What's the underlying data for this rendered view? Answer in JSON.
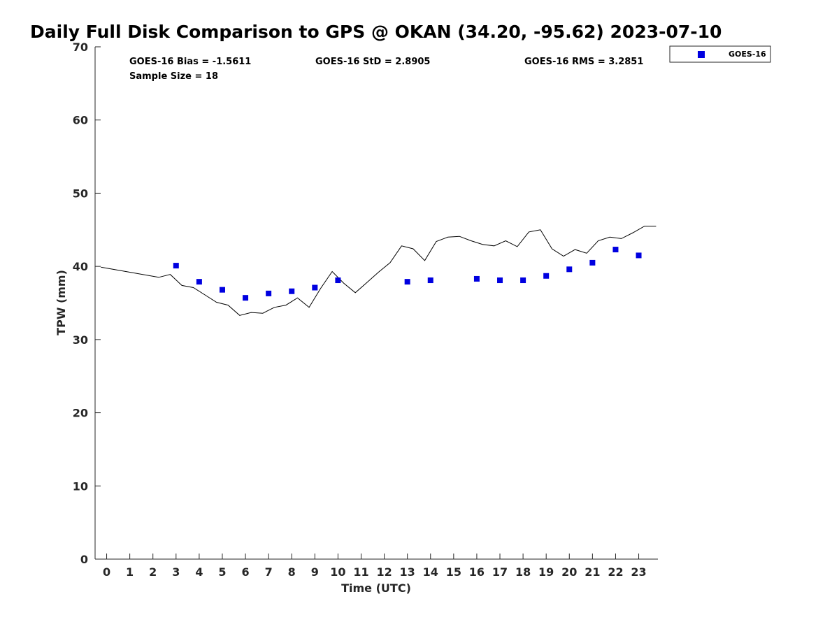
{
  "chart_data": {
    "type": "scatter",
    "title": "Daily Full Disk Comparison to GPS @ OKAN (34.20, -95.62) 2023-07-10",
    "xlabel": "Time (UTC)",
    "ylabel": "TPW (mm)",
    "xlim": [
      -0.5,
      23.83
    ],
    "ylim": [
      0,
      70
    ],
    "xticks": [
      "0",
      "1",
      "2",
      "3",
      "4",
      "5",
      "6",
      "7",
      "8",
      "9",
      "10",
      "11",
      "12",
      "13",
      "14",
      "15",
      "16",
      "17",
      "18",
      "19",
      "20",
      "21",
      "22",
      "23"
    ],
    "yticks": [
      "0",
      "10",
      "20",
      "30",
      "40",
      "50",
      "60",
      "70"
    ],
    "grid": false,
    "legend_position": "top-right outside",
    "colors": {
      "goes": "#0000e0",
      "gps": "#000000"
    },
    "stats": {
      "bias": "GOES-16 Bias = -1.5611",
      "std": "GOES-16 StD = 2.8905",
      "rms": "GOES-16 RMS = 3.2851",
      "sample": "Sample Size = 18"
    },
    "series": [
      {
        "name": "GOES-16",
        "marker": "square",
        "x": [
          3,
          4,
          5,
          6,
          7,
          8,
          9,
          10,
          13,
          14,
          16,
          17,
          18,
          19,
          20,
          21,
          22,
          23
        ],
        "y": [
          40.1,
          37.9,
          36.8,
          35.7,
          36.3,
          36.6,
          37.1,
          38.1,
          37.9,
          38.1,
          38.3,
          38.1,
          38.1,
          38.7,
          39.6,
          40.5,
          42.3,
          41.5
        ]
      },
      {
        "marker": "line",
        "x": [
          -0.25,
          2.25,
          2.75,
          3.25,
          3.75,
          4.25,
          4.75,
          5.25,
          5.75,
          6.25,
          6.75,
          7.25,
          7.75,
          8.25,
          8.75,
          9.25,
          9.75,
          10.25,
          10.75,
          11.25,
          11.75,
          12.25,
          12.75,
          13.25,
          13.75,
          14.25,
          14.75,
          15.25,
          15.75,
          16.25,
          16.75,
          17.25,
          17.75,
          18.25,
          18.75,
          19.25,
          19.75,
          20.25,
          20.75,
          21.25,
          21.75,
          22.25,
          22.75,
          23.25,
          23.75
        ],
        "y": [
          39.9,
          38.5,
          38.9,
          37.4,
          37.1,
          36.1,
          35.1,
          34.7,
          33.3,
          33.7,
          33.6,
          34.4,
          34.7,
          35.7,
          34.4,
          37.0,
          39.3,
          37.7,
          36.4,
          37.8,
          39.2,
          40.5,
          42.8,
          42.4,
          40.8,
          43.4,
          44.0,
          44.1,
          43.5,
          43.0,
          42.8,
          43.5,
          42.7,
          44.7,
          45.0,
          42.4,
          41.4,
          42.3,
          41.8,
          43.5,
          44.0,
          43.8,
          44.6,
          45.5,
          45.5
        ]
      }
    ]
  }
}
